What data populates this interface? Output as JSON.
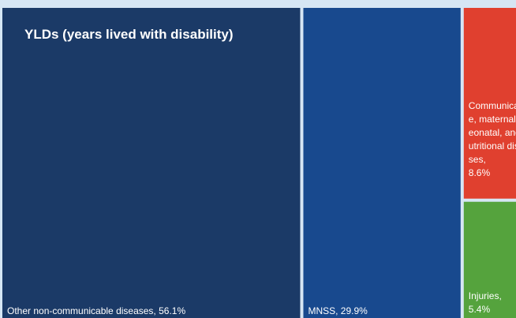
{
  "chart_data": {
    "type": "treemap",
    "title": "YLDs (years lived with disability)",
    "items": [
      {
        "name": "Other non-communicable diseases",
        "label": "Other non-communicable diseases, 56.1%",
        "percent": 56.1,
        "color": "#1b3a67"
      },
      {
        "name": "MNSS",
        "label": "MNSS, 29.9%",
        "percent": 29.9,
        "color": "#18498e"
      },
      {
        "name": "Communicable, maternal, neonatal, and nutritional diseases",
        "label": "Communicable, maternal, neonatal, and nutritional diseases,",
        "percent_label": "8.6%",
        "percent": 8.6,
        "color": "#e0402f"
      },
      {
        "name": "Injuries",
        "label": "Injuries,",
        "percent_label": "5.4%",
        "percent": 5.4,
        "color": "#55a33d"
      }
    ]
  }
}
